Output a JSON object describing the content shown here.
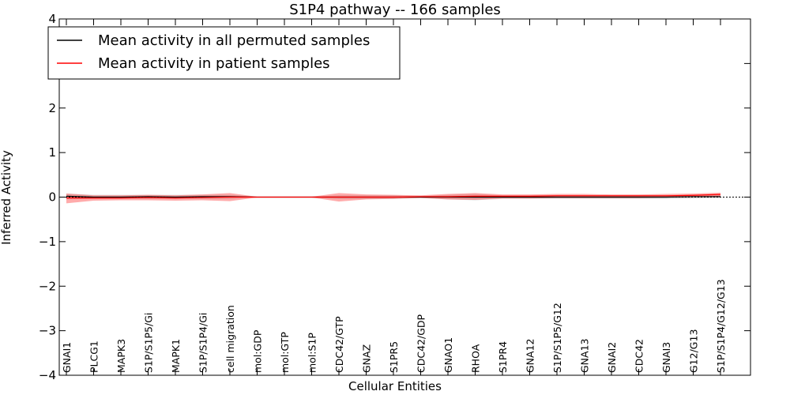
{
  "chart_data": {
    "type": "line",
    "title": "S1P4 pathway -- 166 samples",
    "xlabel": "Cellular Entities",
    "ylabel": "Inferred Activity",
    "ylim": [
      -4,
      4
    ],
    "yticks": [
      "4",
      "3",
      "2",
      "1",
      "0",
      "−1",
      "−2",
      "−3",
      "−4"
    ],
    "ytick_values": [
      4,
      3,
      2,
      1,
      0,
      -1,
      -2,
      -3,
      -4
    ],
    "legend_position": "top-left",
    "categories": [
      "GNAI1",
      "PLCG1",
      "MAPK3",
      "S1P/S1P5/Gi",
      "MAPK1",
      "S1P/S1P4/Gi",
      "cell migration",
      "mol:GDP",
      "mol:GTP",
      "mol:S1P",
      "CDC42/GTP",
      "GNAZ",
      "S1PR5",
      "CDC42/GDP",
      "GNAO1",
      "RHOA",
      "S1PR4",
      "GNA12",
      "S1P/S1P5/G12",
      "GNA13",
      "GNAI2",
      "CDC42",
      "GNAI3",
      "G12/G13",
      "S1P/S1P4/G12/G13"
    ],
    "series": [
      {
        "name": "Mean activity in all permuted samples",
        "color": "#000000",
        "values": [
          0.02,
          0.0,
          0.0,
          0.01,
          0.0,
          0.01,
          0.01,
          0.0,
          0.0,
          0.0,
          0.0,
          0.0,
          0.0,
          0.0,
          0.0,
          0.0,
          0.0,
          0.0,
          0.0,
          0.0,
          0.0,
          0.0,
          0.0,
          0.01,
          0.01
        ],
        "lower": [
          -0.05,
          -0.04,
          -0.04,
          -0.04,
          -0.04,
          -0.04,
          -0.04,
          -0.01,
          -0.01,
          -0.01,
          -0.04,
          -0.04,
          -0.04,
          -0.02,
          -0.05,
          -0.07,
          -0.04,
          -0.04,
          -0.04,
          -0.04,
          -0.04,
          -0.04,
          -0.04,
          -0.03,
          -0.02
        ],
        "upper": [
          0.08,
          0.05,
          0.05,
          0.05,
          0.05,
          0.05,
          0.05,
          0.01,
          0.01,
          0.01,
          0.04,
          0.04,
          0.04,
          0.02,
          0.05,
          0.07,
          0.04,
          0.04,
          0.04,
          0.04,
          0.04,
          0.04,
          0.04,
          0.04,
          0.05
        ]
      },
      {
        "name": "Mean activity in patient samples",
        "color": "#ff0000",
        "values": [
          -0.02,
          -0.02,
          -0.02,
          -0.01,
          -0.02,
          -0.01,
          0.0,
          0.0,
          0.0,
          0.0,
          0.0,
          0.0,
          0.0,
          0.01,
          0.01,
          0.02,
          0.02,
          0.02,
          0.03,
          0.03,
          0.03,
          0.03,
          0.03,
          0.04,
          0.06
        ],
        "lower": [
          -0.14,
          -0.08,
          -0.07,
          -0.07,
          -0.08,
          -0.07,
          -0.09,
          -0.01,
          -0.01,
          -0.01,
          -0.1,
          -0.05,
          -0.04,
          -0.02,
          -0.05,
          -0.06,
          -0.03,
          -0.03,
          -0.02,
          -0.02,
          -0.02,
          -0.02,
          -0.01,
          0.0,
          0.01
        ],
        "upper": [
          0.08,
          0.04,
          0.04,
          0.05,
          0.04,
          0.06,
          0.09,
          0.01,
          0.01,
          0.01,
          0.09,
          0.06,
          0.05,
          0.04,
          0.07,
          0.09,
          0.06,
          0.06,
          0.07,
          0.07,
          0.06,
          0.06,
          0.07,
          0.08,
          0.1
        ]
      }
    ]
  }
}
